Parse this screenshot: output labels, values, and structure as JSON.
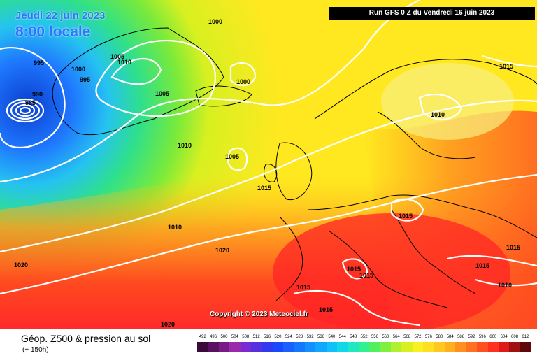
{
  "header": {
    "date": "Jeudi 22 juin 2023",
    "time": "8:00 locale",
    "run": "Run GFS 0 Z du Vendredi 16 juin 2023"
  },
  "map": {
    "pressure_labels": [
      "995",
      "1000",
      "995",
      "1000",
      "1005",
      "1010",
      "990",
      "985",
      "1005",
      "1000",
      "1010",
      "1005",
      "1015",
      "1010",
      "1010",
      "1015",
      "1020",
      "1020",
      "1015",
      "1015",
      "1015",
      "1015",
      "1015",
      "1015",
      "1020",
      "1010",
      "1015"
    ],
    "copyright": "Copyright © 2023 Meteociel.fr",
    "colors": {
      "low": "#0a3fcf",
      "mid": "#2fd86a",
      "high": "#ff2a2a",
      "isobar": "#ffffff"
    }
  },
  "footer": {
    "title": "Géop. Z500 & pression au sol",
    "subtitle": "(+ 150h)",
    "scale_values": [
      "492",
      "496",
      "500",
      "504",
      "508",
      "512",
      "516",
      "520",
      "524",
      "528",
      "532",
      "536",
      "540",
      "544",
      "548",
      "552",
      "556",
      "560",
      "564",
      "568",
      "572",
      "576",
      "580",
      "584",
      "588",
      "592",
      "596",
      "600",
      "604",
      "608",
      "612"
    ],
    "scale_colors": [
      "#3b0a3b",
      "#5a1060",
      "#7a1a86",
      "#9a2aaa",
      "#7a2ad0",
      "#5530e0",
      "#3038f0",
      "#1a48ff",
      "#1860ff",
      "#1478ff",
      "#1290ff",
      "#10a8ff",
      "#10c0f8",
      "#10d8e8",
      "#20e8c0",
      "#30f090",
      "#50f060",
      "#80f040",
      "#b0f030",
      "#d8f020",
      "#f8f020",
      "#ffe020",
      "#ffc820",
      "#ffb020",
      "#ff9020",
      "#ff7020",
      "#ff5020",
      "#ff3020",
      "#e01818",
      "#a01010",
      "#600808"
    ]
  }
}
